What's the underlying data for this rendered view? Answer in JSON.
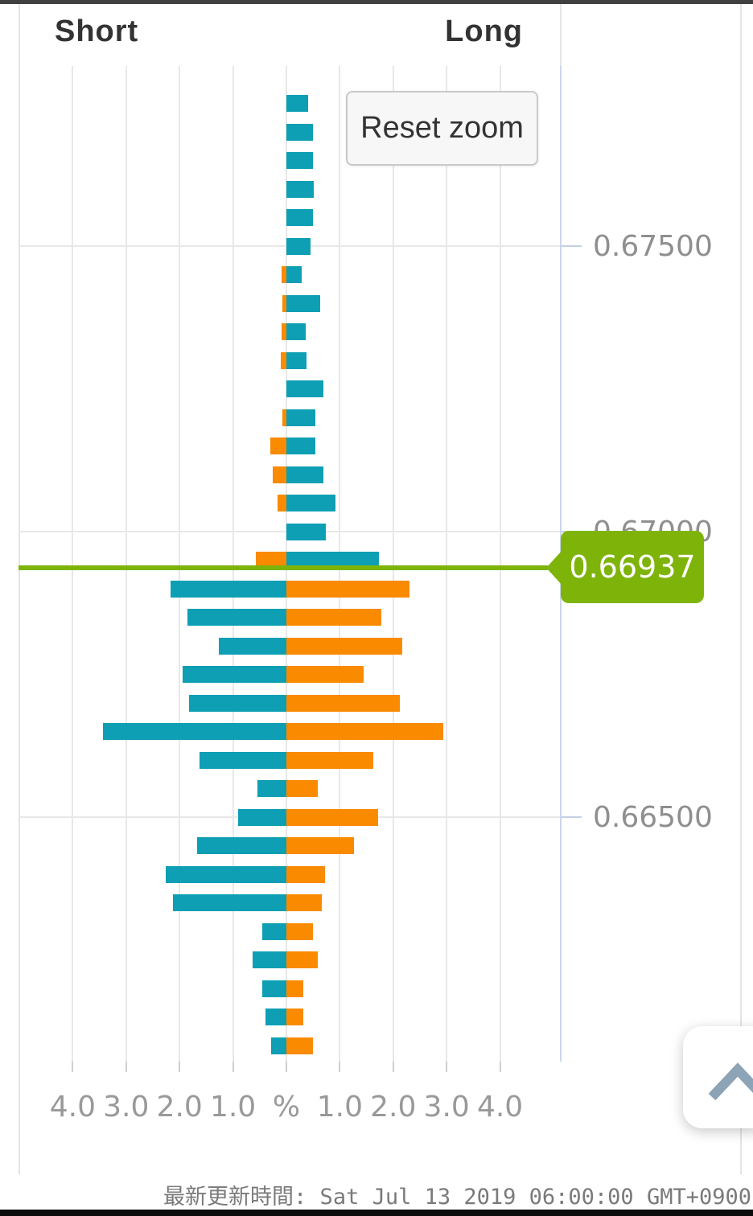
{
  "header": {
    "short_label": "Short",
    "long_label": "Long"
  },
  "controls": {
    "reset_zoom_label": "Reset zoom"
  },
  "footer": {
    "update_time": "最新更新時間: Sat Jul 13 2019 06:00:00 GMT+0900"
  },
  "scroll_top_button": {
    "icon": "chevron-up"
  },
  "chart_data": {
    "type": "bar",
    "orientation": "horizontal-bidirectional",
    "sides": {
      "left": "Short",
      "right": "Long"
    },
    "unit": "%",
    "current_price": 0.66937,
    "current_price_label": "0.66937",
    "colors": {
      "teal": "#0E9FB5",
      "orange": "#FA8A00",
      "price_green": "#7EB40A",
      "grid": "#e8e8e8",
      "axis_line": "#ccd6eb",
      "label_gray": "#8f8f8f"
    },
    "color_rule": {
      "above_price": {
        "left": "orange",
        "right": "teal"
      },
      "below_price": {
        "left": "teal",
        "right": "orange"
      }
    },
    "x_axis": {
      "ticks": [
        {
          "value": -4,
          "label": "4.0"
        },
        {
          "value": -3,
          "label": "3.0"
        },
        {
          "value": -2,
          "label": "2.0"
        },
        {
          "value": -1,
          "label": "1.0"
        },
        {
          "value": 0,
          "label": "%"
        },
        {
          "value": 1,
          "label": "1.0"
        },
        {
          "value": 2,
          "label": "2.0"
        },
        {
          "value": 3,
          "label": "3.0"
        },
        {
          "value": 4,
          "label": "4.0"
        }
      ],
      "range": [
        -4.5,
        4.5
      ]
    },
    "y_axis": {
      "ticks": [
        {
          "price": 0.675,
          "label": "0.67500"
        },
        {
          "price": 0.67,
          "label": "0.67000"
        },
        {
          "price": 0.665,
          "label": "0.66500"
        }
      ]
    },
    "rows": [
      {
        "price": 0.6775,
        "left_pct": 0.0,
        "right_pct": 0.41
      },
      {
        "price": 0.677,
        "left_pct": 0.0,
        "right_pct": 0.5
      },
      {
        "price": 0.6765,
        "left_pct": 0.0,
        "right_pct": 0.5
      },
      {
        "price": 0.676,
        "left_pct": 0.0,
        "right_pct": 0.51
      },
      {
        "price": 0.6755,
        "left_pct": 0.0,
        "right_pct": 0.5
      },
      {
        "price": 0.675,
        "left_pct": 0.0,
        "right_pct": 0.45
      },
      {
        "price": 0.6745,
        "left_pct": 0.09,
        "right_pct": 0.29
      },
      {
        "price": 0.674,
        "left_pct": 0.08,
        "right_pct": 0.64
      },
      {
        "price": 0.6735,
        "left_pct": 0.09,
        "right_pct": 0.36
      },
      {
        "price": 0.673,
        "left_pct": 0.1,
        "right_pct": 0.37
      },
      {
        "price": 0.6725,
        "left_pct": 0.0,
        "right_pct": 0.7
      },
      {
        "price": 0.672,
        "left_pct": 0.07,
        "right_pct": 0.54
      },
      {
        "price": 0.6715,
        "left_pct": 0.3,
        "right_pct": 0.54
      },
      {
        "price": 0.671,
        "left_pct": 0.26,
        "right_pct": 0.69
      },
      {
        "price": 0.6705,
        "left_pct": 0.16,
        "right_pct": 0.92
      },
      {
        "price": 0.67,
        "left_pct": 0.0,
        "right_pct": 0.74
      },
      {
        "price": 0.6695,
        "left_pct": 0.57,
        "right_pct": 1.73
      },
      {
        "price": 0.669,
        "left_pct": 2.17,
        "right_pct": 2.3
      },
      {
        "price": 0.6685,
        "left_pct": 1.85,
        "right_pct": 1.77
      },
      {
        "price": 0.668,
        "left_pct": 1.27,
        "right_pct": 2.17
      },
      {
        "price": 0.6675,
        "left_pct": 1.95,
        "right_pct": 1.44
      },
      {
        "price": 0.667,
        "left_pct": 1.82,
        "right_pct": 2.13
      },
      {
        "price": 0.6665,
        "left_pct": 3.44,
        "right_pct": 2.94
      },
      {
        "price": 0.666,
        "left_pct": 1.63,
        "right_pct": 1.62
      },
      {
        "price": 0.6655,
        "left_pct": 0.54,
        "right_pct": 0.58
      },
      {
        "price": 0.665,
        "left_pct": 0.9,
        "right_pct": 1.72
      },
      {
        "price": 0.6645,
        "left_pct": 1.67,
        "right_pct": 1.27
      },
      {
        "price": 0.664,
        "left_pct": 2.26,
        "right_pct": 0.72
      },
      {
        "price": 0.6635,
        "left_pct": 2.13,
        "right_pct": 0.67
      },
      {
        "price": 0.663,
        "left_pct": 0.45,
        "right_pct": 0.49
      },
      {
        "price": 0.6625,
        "left_pct": 0.64,
        "right_pct": 0.58
      },
      {
        "price": 0.662,
        "left_pct": 0.45,
        "right_pct": 0.32
      },
      {
        "price": 0.6615,
        "left_pct": 0.39,
        "right_pct": 0.32
      },
      {
        "price": 0.661,
        "left_pct": 0.28,
        "right_pct": 0.5
      }
    ]
  }
}
